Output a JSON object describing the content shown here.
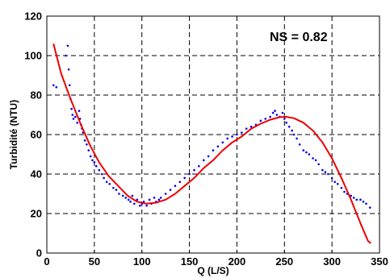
{
  "chart_data": {
    "type": "scatter",
    "title": "",
    "xlabel": "Q (L/S)",
    "ylabel": "Turbidité (NTU)",
    "xlim": [
      0,
      350
    ],
    "ylim": [
      0,
      120
    ],
    "xticks": [
      0,
      50,
      100,
      150,
      200,
      250,
      300,
      350
    ],
    "yticks": [
      0,
      20,
      40,
      60,
      80,
      100,
      120
    ],
    "grid": true,
    "annotation": "NS = 0.82",
    "series": [
      {
        "style": "points",
        "color": "#0000ee",
        "x": [
          7,
          10,
          20,
          22,
          23,
          24,
          25,
          26,
          27,
          28,
          30,
          32,
          34,
          35,
          36,
          37,
          38,
          40,
          42,
          44,
          46,
          48,
          50,
          52,
          55,
          58,
          60,
          63,
          66,
          70,
          73,
          76,
          80,
          83,
          86,
          88,
          90,
          92,
          95,
          98,
          100,
          102,
          105,
          108,
          110,
          113,
          115,
          118,
          120,
          125,
          130,
          135,
          140,
          145,
          150,
          155,
          160,
          165,
          170,
          175,
          180,
          185,
          190,
          195,
          200,
          205,
          210,
          215,
          220,
          225,
          230,
          235,
          238,
          240,
          242,
          245,
          248,
          250,
          252,
          255,
          258,
          260,
          263,
          266,
          270,
          273,
          276,
          280,
          283,
          286,
          290,
          293,
          296,
          300,
          303,
          306,
          310,
          313,
          316,
          320,
          323,
          326,
          330,
          333,
          336,
          340
        ],
        "y": [
          85,
          84,
          100,
          105,
          93,
          85,
          78,
          73,
          70,
          68,
          69,
          66,
          72,
          68,
          65,
          63,
          61,
          57,
          55,
          52,
          49,
          47,
          46,
          44,
          42,
          40,
          38,
          36,
          35,
          33,
          32,
          30,
          29,
          28,
          27,
          26,
          29,
          25,
          27,
          24,
          25,
          26,
          24,
          27,
          25,
          28,
          26,
          27,
          28,
          30,
          32,
          34,
          36,
          38,
          40,
          42,
          44,
          47,
          49,
          52,
          54,
          56,
          58,
          59,
          60,
          61,
          63,
          64,
          65,
          67,
          68,
          69,
          71,
          72,
          70,
          69,
          71,
          68,
          66,
          64,
          62,
          60,
          58,
          55,
          52,
          51,
          50,
          48,
          47,
          45,
          42,
          41,
          40,
          38,
          36,
          35,
          33,
          31,
          30,
          29,
          28,
          27,
          27,
          26,
          25,
          23
        ]
      },
      {
        "style": "line",
        "color": "#ee0000",
        "x": [
          7,
          15,
          25,
          35,
          45,
          55,
          65,
          75,
          85,
          95,
          105,
          115,
          125,
          135,
          145,
          155,
          165,
          175,
          185,
          195,
          205,
          215,
          225,
          235,
          245,
          252,
          260,
          270,
          280,
          290,
          300,
          310,
          320,
          330,
          338,
          341
        ],
        "y": [
          106,
          91,
          78,
          66,
          55,
          46,
          39,
          34,
          29,
          26,
          25,
          25.5,
          27,
          30,
          34,
          38,
          43,
          47,
          52,
          56,
          59,
          63,
          65.5,
          67.5,
          68.8,
          69,
          68.3,
          66,
          62,
          56,
          48,
          38,
          27,
          15,
          6,
          5
        ]
      }
    ]
  }
}
